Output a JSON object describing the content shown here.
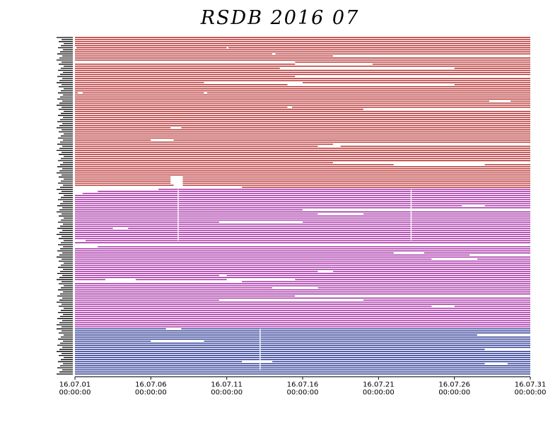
{
  "title": "RSDB  2016  07",
  "chart_data": {
    "type": "timeline",
    "title": "RSDB  2016  07",
    "xlabel": "",
    "ylabel": "",
    "x_range": [
      "2016-07-01 00:00:00",
      "2016-07-31 00:00:00"
    ],
    "x_ticks": [
      {
        "line1": "16.07.01",
        "line2": "00:00:00",
        "day": 1
      },
      {
        "line1": "16.07.06",
        "line2": "00:00:00",
        "day": 6
      },
      {
        "line1": "16.07.11",
        "line2": "00:00:00",
        "day": 11
      },
      {
        "line1": "16.07.16",
        "line2": "00:00:00",
        "day": 16
      },
      {
        "line1": "16.07.21",
        "line2": "00:00:00",
        "day": 21
      },
      {
        "line1": "16.07.26",
        "line2": "00:00:00",
        "day": 26
      },
      {
        "line1": "16.07.31",
        "line2": "00:00:00",
        "day": 31
      }
    ],
    "groups": [
      {
        "color": "#b22222",
        "rows": 74
      },
      {
        "color": "#a020a0",
        "rows": 68
      },
      {
        "color": "#1c2a8c",
        "rows": 23
      }
    ],
    "row_labels_legible": false,
    "gaps": [
      {
        "row": 5,
        "start": 1.0,
        "end": 1.05
      },
      {
        "row": 5,
        "start": 11.0,
        "end": 11.1
      },
      {
        "row": 8,
        "start": 14.0,
        "end": 14.2
      },
      {
        "row": 9,
        "start": 18.0,
        "end": 31.0
      },
      {
        "row": 12,
        "start": 1.0,
        "end": 15.5
      },
      {
        "row": 13,
        "start": 15.5,
        "end": 20.6
      },
      {
        "row": 15,
        "start": 14.5,
        "end": 26.0
      },
      {
        "row": 19,
        "start": 15.5,
        "end": 31.0
      },
      {
        "row": 22,
        "start": 9.5,
        "end": 16.0
      },
      {
        "row": 23,
        "start": 15.0,
        "end": 26.0
      },
      {
        "row": 27,
        "start": 1.2,
        "end": 1.5
      },
      {
        "row": 27,
        "start": 9.5,
        "end": 9.7
      },
      {
        "row": 31,
        "start": 28.3,
        "end": 29.7
      },
      {
        "row": 34,
        "start": 15.0,
        "end": 15.3
      },
      {
        "row": 35,
        "start": 20.0,
        "end": 31.0
      },
      {
        "row": 44,
        "start": 7.3,
        "end": 8.0
      },
      {
        "row": 50,
        "start": 6.0,
        "end": 7.5
      },
      {
        "row": 52,
        "start": 18.0,
        "end": 31.0
      },
      {
        "row": 53,
        "start": 17.0,
        "end": 18.5
      },
      {
        "row": 61,
        "start": 18.0,
        "end": 31.0
      },
      {
        "row": 62,
        "start": 22.0,
        "end": 28.0
      },
      {
        "row": 68,
        "start": 7.3,
        "end": 8.1
      },
      {
        "row": 69,
        "start": 7.3,
        "end": 8.1
      },
      {
        "row": 70,
        "start": 7.3,
        "end": 8.1
      },
      {
        "row": 71,
        "start": 7.3,
        "end": 8.1
      },
      {
        "row": 72,
        "start": 7.5,
        "end": 8.1
      },
      {
        "row": 73,
        "start": 1.0,
        "end": 12.0
      },
      {
        "row": 74,
        "start": 1.0,
        "end": 6.5
      },
      {
        "row": 75,
        "start": 1.0,
        "end": 2.5
      },
      {
        "row": 76,
        "start": 1.0,
        "end": 1.5
      },
      {
        "row": 82,
        "start": 26.5,
        "end": 28.0
      },
      {
        "row": 84,
        "start": 16.0,
        "end": 31.0
      },
      {
        "row": 86,
        "start": 17.0,
        "end": 20.0
      },
      {
        "row": 90,
        "start": 10.5,
        "end": 16.0
      },
      {
        "row": 93,
        "start": 3.5,
        "end": 4.5
      },
      {
        "row": 99,
        "start": 1.0,
        "end": 1.7
      },
      {
        "row": 101,
        "start": 1.0,
        "end": 31.0
      },
      {
        "row": 102,
        "start": 1.0,
        "end": 2.5
      },
      {
        "row": 105,
        "start": 22.0,
        "end": 24.0
      },
      {
        "row": 106,
        "start": 27.0,
        "end": 31.0
      },
      {
        "row": 108,
        "start": 24.5,
        "end": 27.5
      },
      {
        "row": 114,
        "start": 17.0,
        "end": 18.0
      },
      {
        "row": 116,
        "start": 10.5,
        "end": 11.0
      },
      {
        "row": 118,
        "start": 3.0,
        "end": 5.0
      },
      {
        "row": 118,
        "start": 11.0,
        "end": 15.5
      },
      {
        "row": 119,
        "start": 1.0,
        "end": 12.0
      },
      {
        "row": 122,
        "start": 14.0,
        "end": 17.0
      },
      {
        "row": 126,
        "start": 15.5,
        "end": 31.0
      },
      {
        "row": 128,
        "start": 10.5,
        "end": 20.0
      },
      {
        "row": 131,
        "start": 24.5,
        "end": 26.0
      },
      {
        "row": 142,
        "start": 7.0,
        "end": 8.0
      },
      {
        "row": 145,
        "start": 27.5,
        "end": 31.0
      },
      {
        "row": 148,
        "start": 6.0,
        "end": 9.5
      },
      {
        "row": 152,
        "start": 28.0,
        "end": 31.0
      },
      {
        "row": 158,
        "start": 12.0,
        "end": 14.0
      },
      {
        "row": 159,
        "start": 28.0,
        "end": 29.5
      }
    ],
    "vertical_gaps": [
      {
        "day": 7.8,
        "row_start": 74,
        "row_end": 99
      },
      {
        "day": 23.15,
        "row_start": 74,
        "row_end": 99
      },
      {
        "day": 13.2,
        "row_start": 142,
        "row_end": 162
      }
    ]
  }
}
